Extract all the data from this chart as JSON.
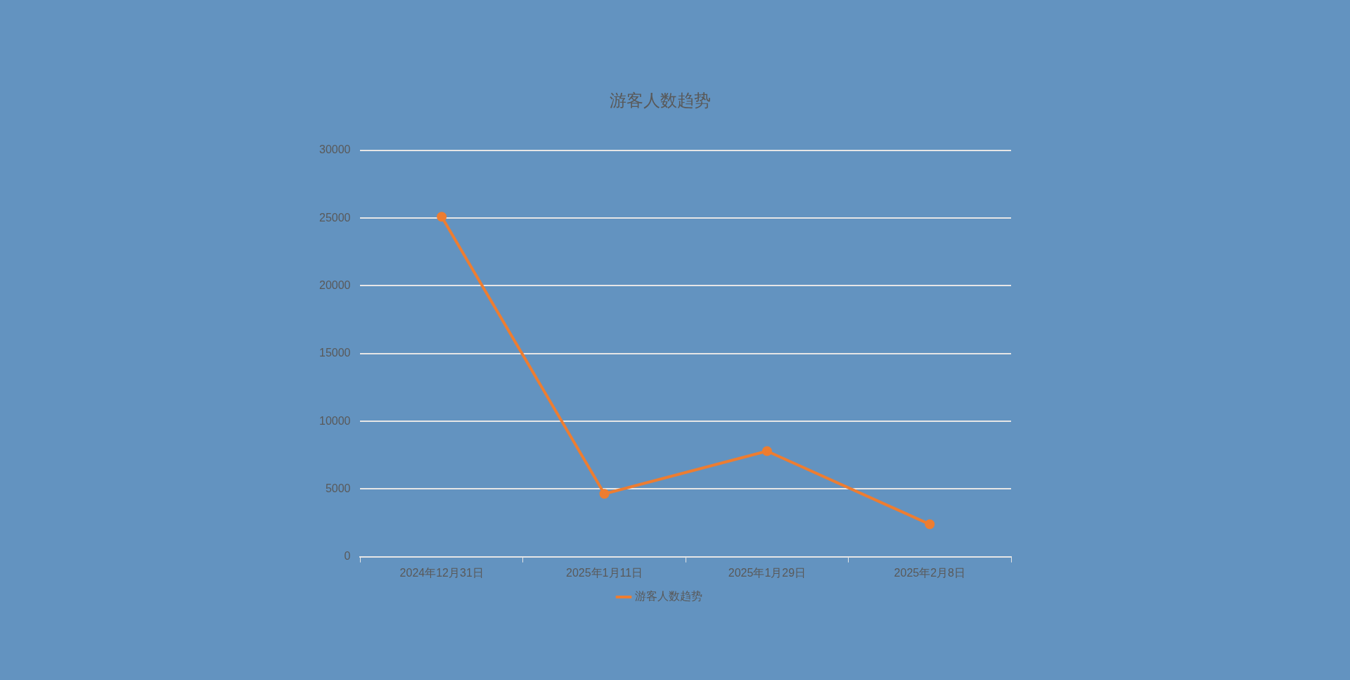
{
  "chart_data": {
    "type": "line",
    "title": "游客人数趋势",
    "categories": [
      "2024年12月31日",
      "2025年1月11日",
      "2025年1月29日",
      "2025年2月8日"
    ],
    "series": [
      {
        "name": "游客人数趋势",
        "color": "#ed7d31",
        "values": [
          25100,
          4650,
          7800,
          2400
        ]
      }
    ],
    "ylim": [
      0,
      30000
    ],
    "yticks": [
      0,
      5000,
      10000,
      15000,
      20000,
      25000,
      30000
    ],
    "grid": "y",
    "legend": "bottom",
    "marker": "circle"
  }
}
